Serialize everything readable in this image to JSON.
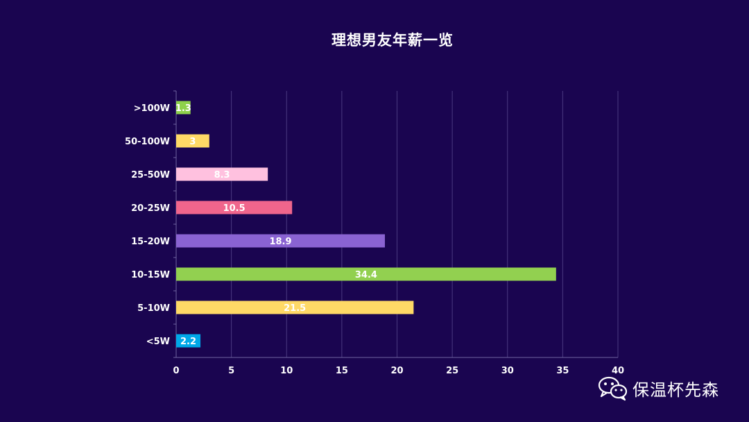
{
  "chart_data": {
    "type": "bar",
    "orientation": "horizontal",
    "title": "理想男友年薪一览",
    "categories": [
      ">100W",
      "50-100W",
      "25-50W",
      "20-25W",
      "15-20W",
      "10-15W",
      "5-10W",
      "<5W"
    ],
    "values": [
      1.3,
      3,
      8.3,
      10.5,
      18.9,
      34.4,
      21.5,
      2.2
    ],
    "value_labels": [
      "1.3",
      "3",
      "8.3",
      "10.5",
      "18.9",
      "34.4",
      "21.5",
      "2.2"
    ],
    "colors": [
      "#8ed14b",
      "#ffd966",
      "#ffc1df",
      "#f0658c",
      "#8a63d2",
      "#92d050",
      "#ffd966",
      "#00a8e8"
    ],
    "xlim": [
      0,
      40
    ],
    "xticks": [
      0,
      5,
      10,
      15,
      20,
      25,
      30,
      35,
      40
    ],
    "xtick_labels": [
      "0",
      "5",
      "10",
      "15",
      "20",
      "25",
      "30",
      "35",
      "40"
    ],
    "grid": true,
    "legend": "none"
  },
  "colors": {
    "background": "#1a0550",
    "gridline": "#4b3a80",
    "axis": "#6f64a0",
    "text": "#ffffff"
  },
  "watermark": {
    "icon": "wechat-icon",
    "text": "保温杯先森"
  }
}
